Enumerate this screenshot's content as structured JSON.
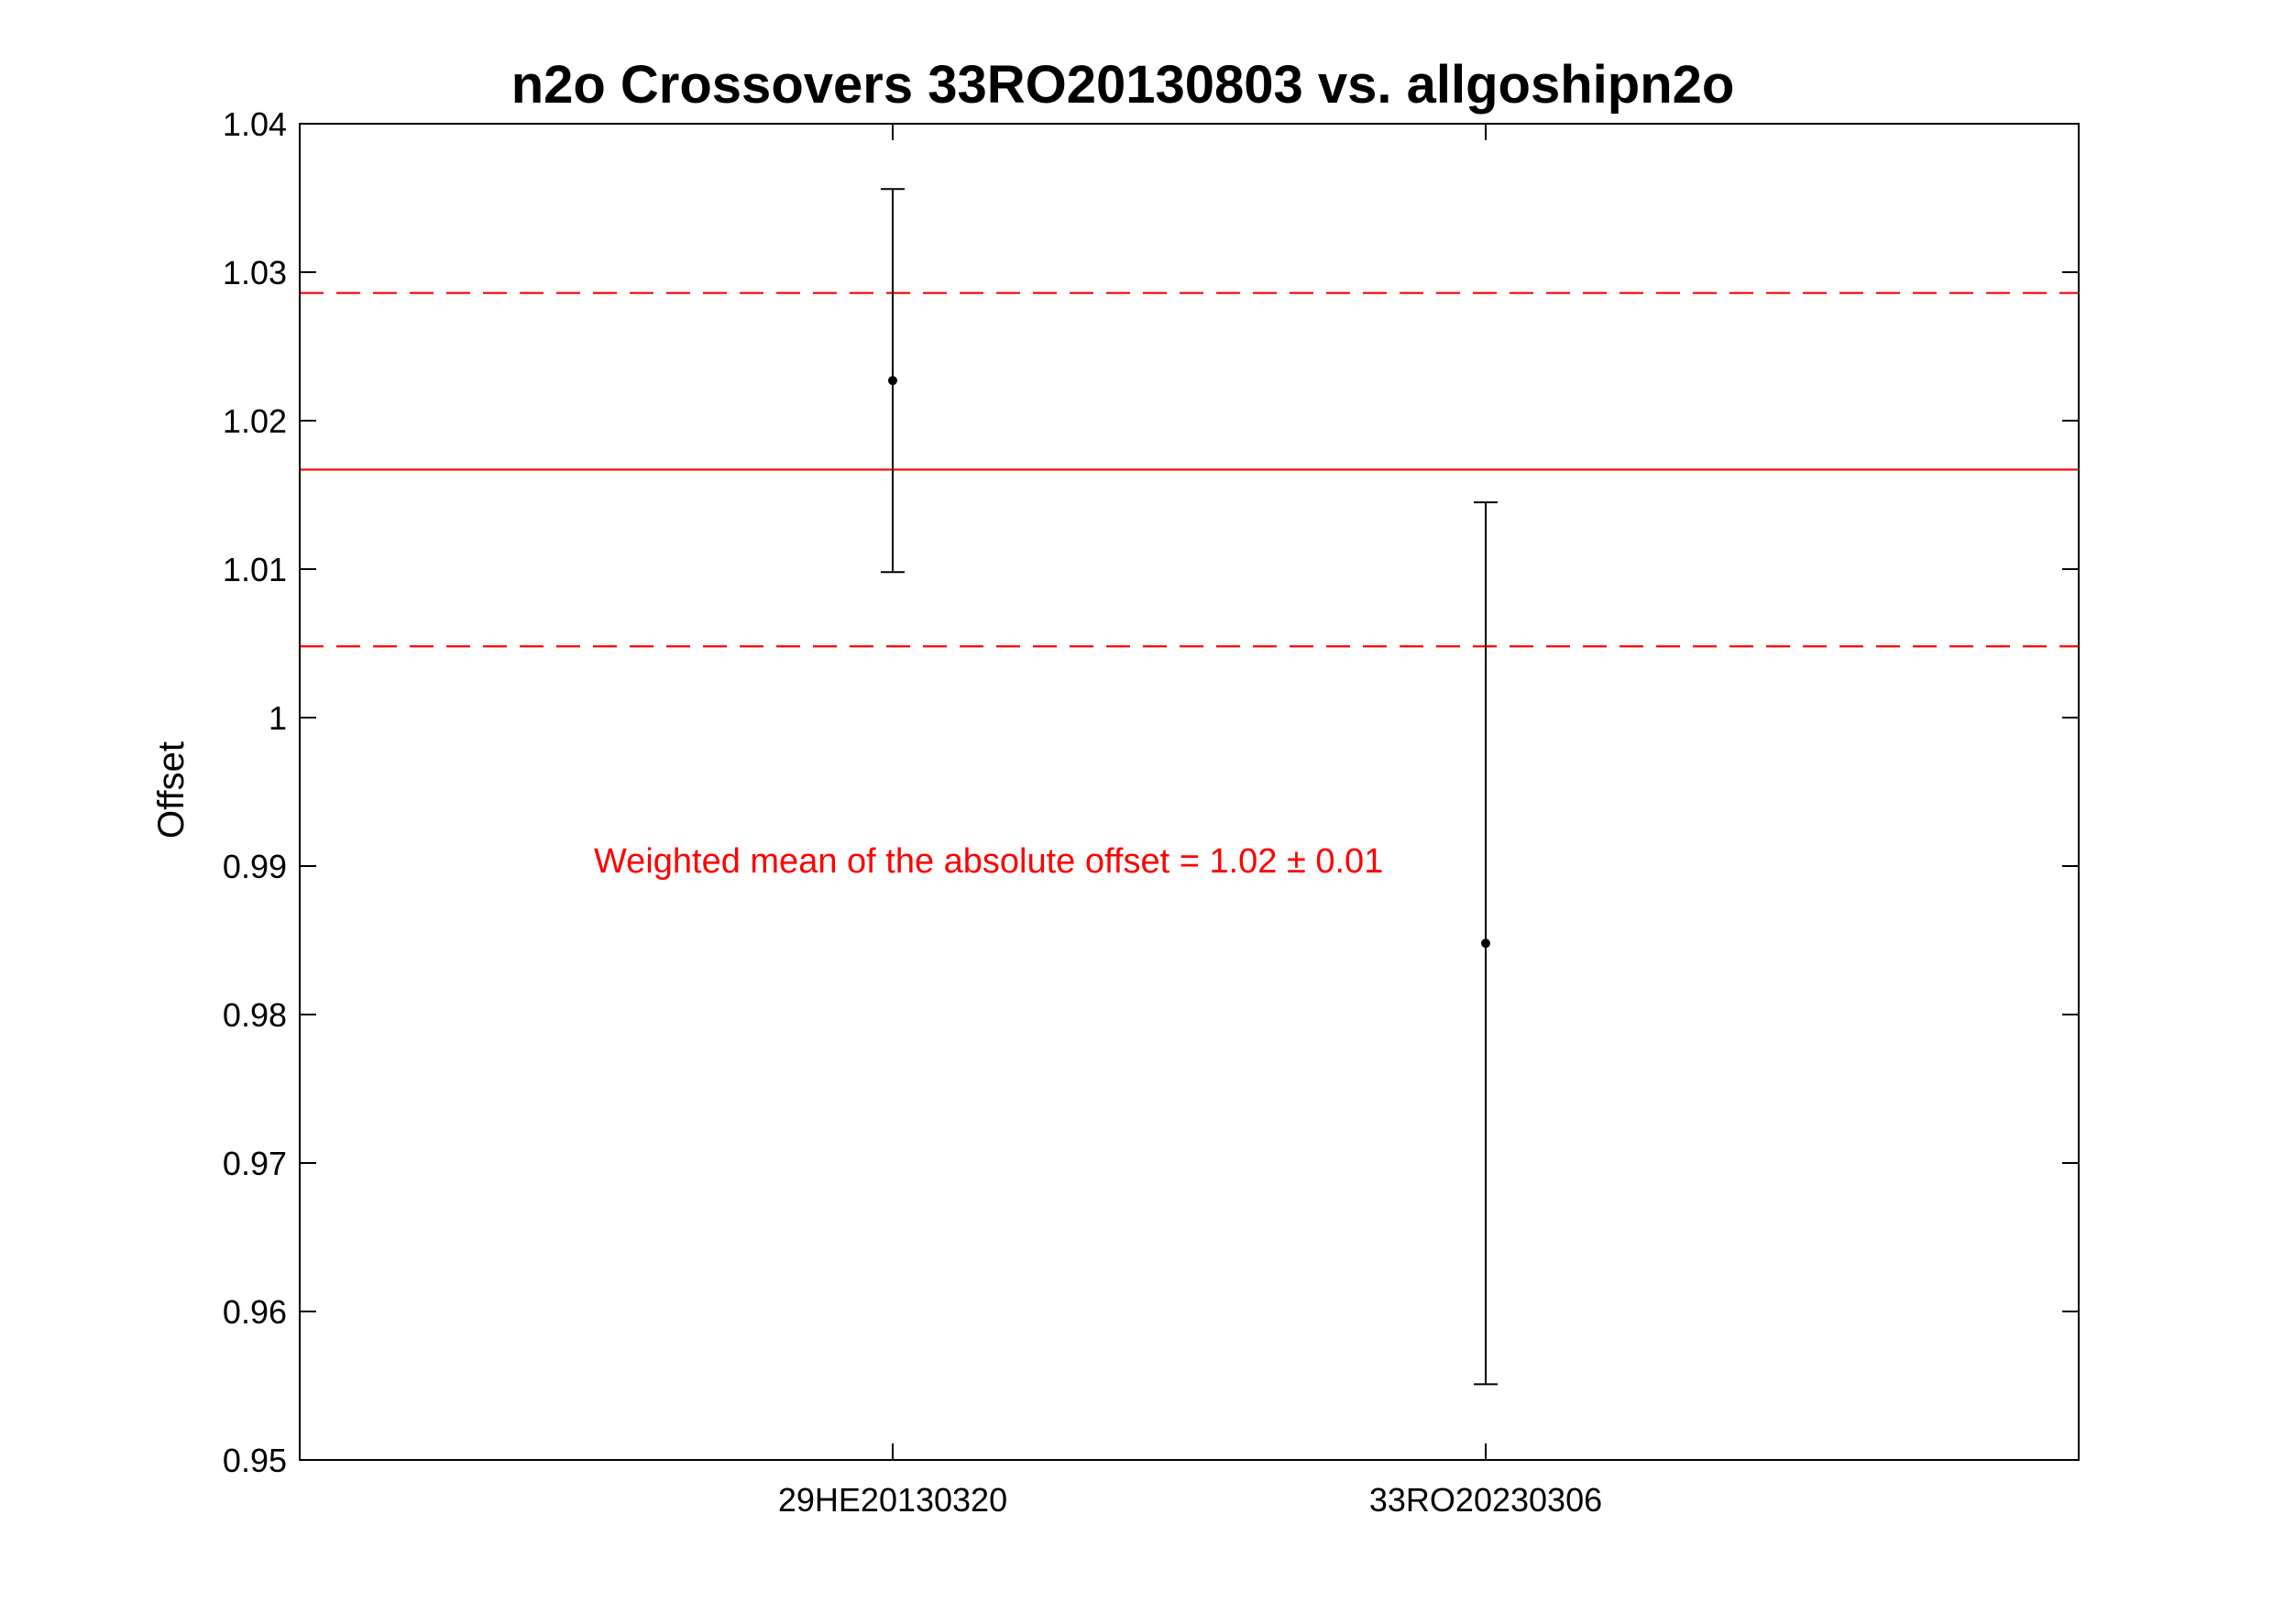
{
  "chart_data": {
    "type": "scatter",
    "title": "n2o Crossovers 33RO20130803 vs. allgoshipn2o",
    "xlabel": "",
    "ylabel": "Offset",
    "ylim": [
      0.95,
      1.04
    ],
    "yticks": [
      "0.95",
      "0.96",
      "0.97",
      "0.98",
      "0.99",
      "1",
      "1.01",
      "1.02",
      "1.03",
      "1.04"
    ],
    "xlim": [
      0,
      3
    ],
    "categories": [
      "29HE20130320",
      "33RO20230306"
    ],
    "points": [
      {
        "label": "29HE20130320",
        "x": 1,
        "y": 1.0227,
        "lower": 1.0098,
        "upper": 1.0356
      },
      {
        "label": "33RO20230306",
        "x": 2,
        "y": 0.9848,
        "lower": 0.9551,
        "upper": 1.0145
      }
    ],
    "mean_line": {
      "value": 1.0167,
      "color": "#ff0000"
    },
    "bound_lines": {
      "upper": 1.0286,
      "lower": 1.0048,
      "color": "#ff0000",
      "style": "dashed"
    },
    "annotation": {
      "text": "Weighted mean of the absolute offset = 1.02 ± 0.01",
      "color": "#ff0000"
    },
    "grid": false,
    "legend": "none"
  }
}
